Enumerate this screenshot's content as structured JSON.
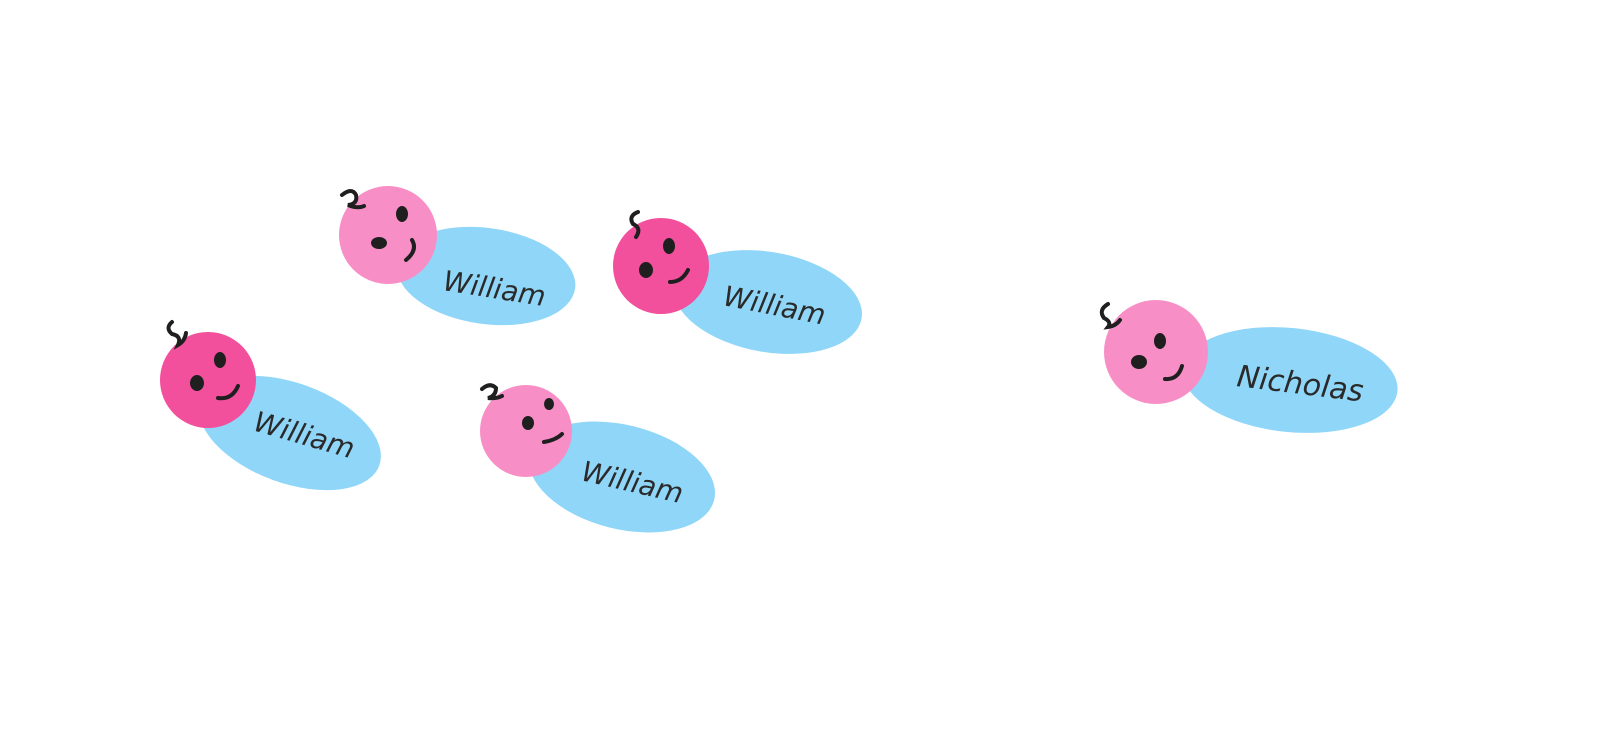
{
  "colors": {
    "background": "#ffffff",
    "body_blue": "#8fd6f8",
    "head_pink_light": "#f78fc6",
    "head_pink_dark": "#f2509c",
    "ink": "#1f1f1f"
  },
  "babies": [
    {
      "name": "William",
      "head_color": "head_pink_light",
      "icon": "baby-face-icon"
    },
    {
      "name": "William",
      "head_color": "head_pink_dark",
      "icon": "baby-face-icon"
    },
    {
      "name": "William",
      "head_color": "head_pink_dark",
      "icon": "baby-face-icon"
    },
    {
      "name": "William",
      "head_color": "head_pink_light",
      "icon": "baby-face-icon"
    },
    {
      "name": "Nicholas",
      "head_color": "head_pink_light",
      "icon": "baby-face-icon"
    }
  ]
}
